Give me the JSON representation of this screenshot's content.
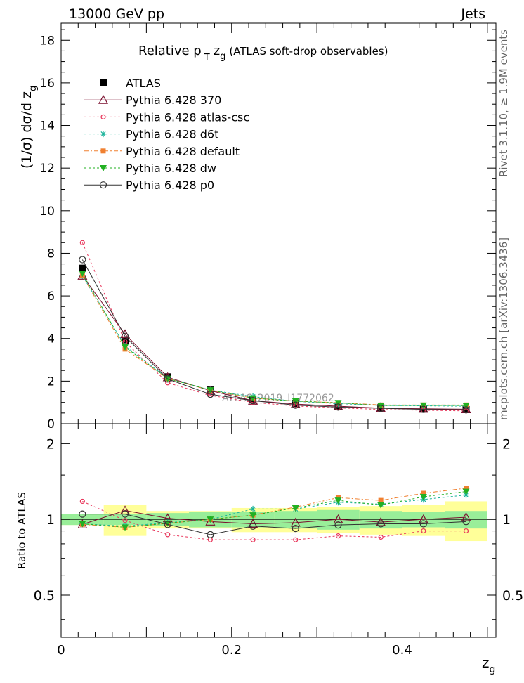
{
  "header": {
    "left": "13000 GeV pp",
    "right": "Jets"
  },
  "side_labels": {
    "rivet": "Rivet 3.1.10, ≥ 1.9M events",
    "mcplots": "mcplots.cern.ch [arXiv:1306.3436]"
  },
  "chart_data": [
    {
      "type": "line",
      "panel": "main",
      "title_main": "Relative p",
      "title_sub": "T",
      "title_var": "z",
      "title_var_sub": "g",
      "title_rest": "(ATLAS soft-drop observables)",
      "ylabel": "(1/σ) dσ/d z",
      "ylabel_sub": "g",
      "watermark": "ATLAS_2019_I1772062",
      "xlim": [
        0,
        0.51
      ],
      "ylim": [
        0,
        18.8
      ],
      "yticks": [
        0,
        2,
        4,
        6,
        8,
        10,
        12,
        14,
        16,
        18
      ],
      "x": [
        0.025,
        0.075,
        0.125,
        0.175,
        0.225,
        0.275,
        0.325,
        0.375,
        0.425,
        0.475
      ],
      "series": [
        {
          "name": "ATLAS",
          "color": "#000000",
          "marker": "square-filled",
          "dash": "none",
          "values": [
            7.3,
            3.9,
            2.2,
            1.58,
            1.15,
            0.95,
            0.82,
            0.75,
            0.7,
            0.66
          ]
        },
        {
          "name": "Pythia 6.428 370",
          "color": "#7a0f2e",
          "marker": "triangle-open",
          "dash": "solid",
          "values": [
            6.95,
            4.2,
            2.18,
            1.55,
            1.08,
            0.92,
            0.82,
            0.73,
            0.7,
            0.68
          ]
        },
        {
          "name": "Pythia 6.428 atlas-csc",
          "color": "#e8355a",
          "marker": "circle-open-small",
          "dash": "3,3",
          "values": [
            8.5,
            3.85,
            1.92,
            1.33,
            1.0,
            0.83,
            0.74,
            0.67,
            0.63,
            0.6
          ]
        },
        {
          "name": "Pythia 6.428 d6t",
          "color": "#1ab39a",
          "marker": "star",
          "dash": "3,3",
          "values": [
            6.95,
            3.65,
            2.13,
            1.58,
            1.27,
            1.05,
            0.94,
            0.86,
            0.84,
            0.82
          ]
        },
        {
          "name": "Pythia 6.428 default",
          "color": "#f08030",
          "marker": "square-small",
          "dash": "6,3,2,3",
          "values": [
            6.95,
            3.5,
            2.12,
            1.57,
            1.2,
            1.06,
            0.99,
            0.88,
            0.88,
            0.88
          ]
        },
        {
          "name": "Pythia 6.428 dw",
          "color": "#22b022",
          "marker": "triangle-down-filled",
          "dash": "3,3",
          "values": [
            7.05,
            3.6,
            2.12,
            1.58,
            1.2,
            1.06,
            0.98,
            0.85,
            0.86,
            0.85
          ]
        },
        {
          "name": "Pythia 6.428 p0",
          "color": "#333333",
          "marker": "circle-open",
          "dash": "solid",
          "values": [
            7.7,
            4.1,
            2.1,
            1.38,
            1.08,
            0.87,
            0.78,
            0.72,
            0.67,
            0.65
          ]
        }
      ]
    },
    {
      "type": "line",
      "panel": "ratio",
      "ylabel": "Ratio to ATLAS",
      "xlabel": "z",
      "xlabel_sub": "g",
      "xlim": [
        0,
        0.51
      ],
      "ylim": [
        0.34,
        2.4
      ],
      "yticks": [
        0.5,
        1,
        2
      ],
      "xticks": [
        0,
        0.2,
        0.4
      ],
      "band_edges": [
        0,
        0.05,
        0.1,
        0.2,
        0.3,
        0.35,
        0.4,
        0.45,
        0.5
      ],
      "band_stat": [
        0.05,
        0.05,
        0.06,
        0.07,
        0.07,
        0.08,
        0.09,
        0.08,
        0.07,
        0.08
      ],
      "band_total": [
        0.05,
        0.14,
        0.08,
        0.08,
        0.11,
        0.11,
        0.12,
        0.13,
        0.14,
        0.18
      ],
      "x": [
        0.025,
        0.075,
        0.125,
        0.175,
        0.225,
        0.275,
        0.325,
        0.375,
        0.425,
        0.475
      ],
      "series": [
        {
          "name": "Pythia 6.428 370",
          "values": [
            0.955,
            1.085,
            1.01,
            0.98,
            0.96,
            0.97,
            1.0,
            0.975,
            1.0,
            1.02
          ]
        },
        {
          "name": "Pythia 6.428 atlas-csc",
          "values": [
            1.18,
            0.99,
            0.87,
            0.83,
            0.83,
            0.83,
            0.86,
            0.85,
            0.9,
            0.9
          ]
        },
        {
          "name": "Pythia 6.428 d6t",
          "values": [
            0.96,
            0.94,
            0.97,
            1.0,
            1.1,
            1.1,
            1.17,
            1.15,
            1.2,
            1.25
          ]
        },
        {
          "name": "Pythia 6.428 default",
          "values": [
            0.955,
            0.93,
            0.965,
            1.0,
            1.04,
            1.12,
            1.22,
            1.19,
            1.27,
            1.33
          ]
        },
        {
          "name": "Pythia 6.428 dw",
          "values": [
            0.96,
            0.93,
            0.965,
            1.0,
            1.04,
            1.11,
            1.19,
            1.14,
            1.23,
            1.29
          ]
        },
        {
          "name": "Pythia 6.428 p0",
          "values": [
            1.05,
            1.05,
            0.955,
            0.87,
            0.94,
            0.92,
            0.95,
            0.96,
            0.96,
            0.98
          ]
        }
      ]
    }
  ]
}
